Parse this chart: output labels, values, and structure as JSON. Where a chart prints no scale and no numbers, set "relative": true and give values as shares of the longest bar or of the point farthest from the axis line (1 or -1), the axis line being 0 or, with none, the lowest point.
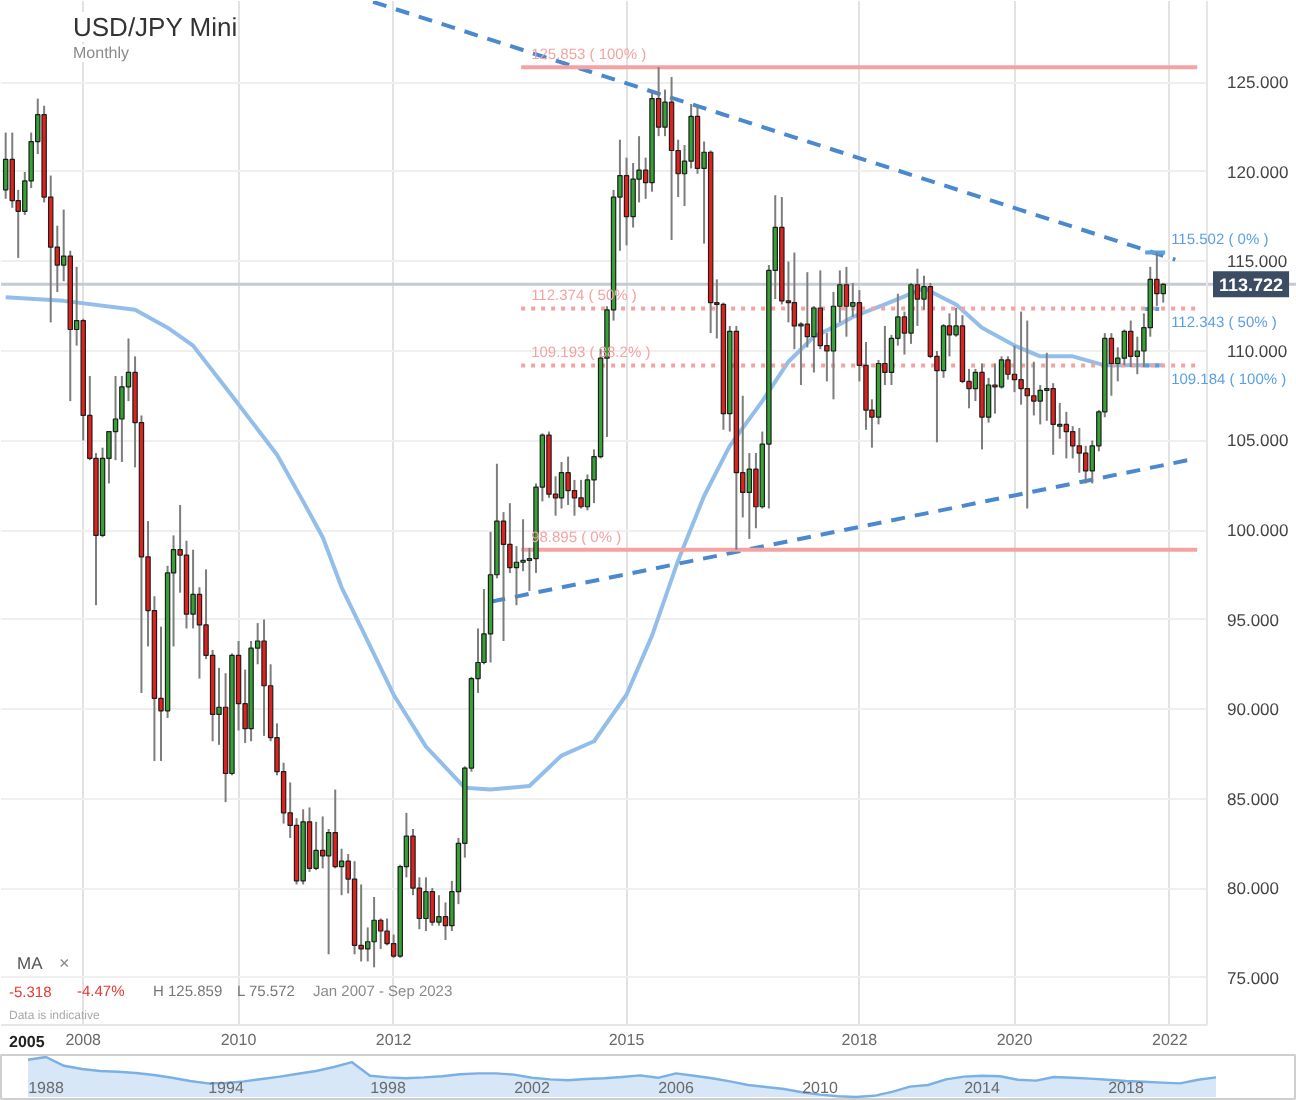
{
  "chart_data": [
    {
      "type": "candlestick",
      "title": "USD/JPY Mini",
      "subtitle": "Monthly",
      "x": [
        "2007-01",
        "2007-02",
        "2007-03",
        "2007-04",
        "2007-05",
        "2007-06",
        "2007-07",
        "2007-08",
        "2007-09",
        "2007-10",
        "2007-11",
        "2007-12",
        "2008-01",
        "2008-02",
        "2008-03",
        "2008-04",
        "2008-05",
        "2008-06",
        "2008-07",
        "2008-08",
        "2008-09",
        "2008-10",
        "2008-11",
        "2008-12",
        "2009-01",
        "2009-02",
        "2009-03",
        "2009-04",
        "2009-05",
        "2009-06",
        "2009-07",
        "2009-08",
        "2009-09",
        "2009-10",
        "2009-11",
        "2009-12",
        "2010-01",
        "2010-02",
        "2010-03",
        "2010-04",
        "2010-05",
        "2010-06",
        "2010-07",
        "2010-08",
        "2010-09",
        "2010-10",
        "2010-11",
        "2010-12",
        "2011-01",
        "2011-02",
        "2011-03",
        "2011-04",
        "2011-05",
        "2011-06",
        "2011-07",
        "2011-08",
        "2011-09",
        "2011-10",
        "2011-11",
        "2011-12",
        "2012-01",
        "2012-02",
        "2012-03",
        "2012-04",
        "2012-05",
        "2012-06",
        "2012-07",
        "2012-08",
        "2012-09",
        "2012-10",
        "2012-11",
        "2012-12",
        "2013-01",
        "2013-02",
        "2013-03",
        "2013-04",
        "2013-05",
        "2013-06",
        "2013-07",
        "2013-08",
        "2013-09",
        "2013-10",
        "2013-11",
        "2013-12",
        "2014-01",
        "2014-02",
        "2014-03",
        "2014-04",
        "2014-05",
        "2014-06",
        "2014-07",
        "2014-08",
        "2014-09",
        "2014-10",
        "2014-11",
        "2014-12",
        "2015-01",
        "2015-02",
        "2015-03",
        "2015-04",
        "2015-05",
        "2015-06",
        "2015-07",
        "2015-08",
        "2015-09",
        "2015-10",
        "2015-11",
        "2015-12",
        "2016-01",
        "2016-02",
        "2016-03",
        "2016-04",
        "2016-05",
        "2016-06",
        "2016-07",
        "2016-08",
        "2016-09",
        "2016-10",
        "2016-11",
        "2016-12",
        "2017-01",
        "2017-02",
        "2017-03",
        "2017-04",
        "2017-05",
        "2017-06",
        "2017-07",
        "2017-08",
        "2017-09",
        "2017-10",
        "2017-11",
        "2017-12",
        "2018-01",
        "2018-02",
        "2018-03",
        "2018-04",
        "2018-05",
        "2018-06",
        "2018-07",
        "2018-08",
        "2018-09",
        "2018-10",
        "2018-11",
        "2018-12",
        "2019-01",
        "2019-02",
        "2019-03",
        "2019-04",
        "2019-05",
        "2019-06",
        "2019-07",
        "2019-08",
        "2019-09",
        "2019-10",
        "2019-11",
        "2019-12",
        "2020-01",
        "2020-02",
        "2020-03",
        "2020-04",
        "2020-05",
        "2020-06",
        "2020-07",
        "2020-08",
        "2020-09",
        "2020-10",
        "2020-11",
        "2020-12",
        "2021-01",
        "2021-02",
        "2021-03",
        "2021-04",
        "2021-05",
        "2021-06",
        "2021-07",
        "2021-08",
        "2021-09",
        "2021-10",
        "2021-11",
        "2021-12"
      ],
      "ohlc": [
        [
          119.0,
          122.2,
          118.5,
          120.7
        ],
        [
          120.7,
          122.2,
          118.0,
          118.4
        ],
        [
          118.4,
          119.0,
          115.2,
          117.8
        ],
        [
          117.8,
          120.0,
          117.6,
          119.5
        ],
        [
          119.5,
          122.2,
          119.1,
          121.7
        ],
        [
          121.7,
          124.1,
          121.0,
          123.2
        ],
        [
          123.2,
          123.7,
          118.3,
          118.6
        ],
        [
          118.6,
          119.8,
          111.6,
          115.8
        ],
        [
          115.8,
          117.0,
          113.3,
          114.8
        ],
        [
          114.8,
          117.9,
          113.9,
          115.3
        ],
        [
          115.3,
          115.6,
          107.2,
          111.2
        ],
        [
          111.2,
          114.7,
          110.3,
          111.7
        ],
        [
          111.7,
          111.8,
          105.0,
          106.4
        ],
        [
          106.4,
          108.6,
          103.9,
          104.0
        ],
        [
          104.0,
          104.3,
          95.8,
          99.7
        ],
        [
          99.7,
          104.6,
          99.6,
          104.0
        ],
        [
          104.0,
          105.5,
          102.6,
          105.5
        ],
        [
          105.5,
          108.6,
          103.9,
          106.2
        ],
        [
          106.2,
          108.6,
          103.8,
          108.0
        ],
        [
          108.0,
          110.7,
          107.2,
          108.8
        ],
        [
          108.8,
          109.7,
          103.5,
          106.0
        ],
        [
          106.0,
          106.4,
          90.9,
          98.5
        ],
        [
          98.5,
          100.5,
          93.5,
          95.5
        ],
        [
          95.5,
          96.3,
          87.1,
          90.6
        ],
        [
          90.6,
          94.6,
          87.1,
          89.9
        ],
        [
          89.9,
          98.0,
          89.5,
          97.6
        ],
        [
          97.6,
          99.7,
          93.5,
          98.9
        ],
        [
          98.9,
          101.4,
          96.5,
          98.6
        ],
        [
          98.6,
          99.4,
          94.5,
          95.3
        ],
        [
          95.3,
          98.9,
          94.5,
          96.4
        ],
        [
          96.4,
          96.8,
          91.7,
          94.7
        ],
        [
          94.7,
          97.8,
          92.8,
          93.0
        ],
        [
          93.0,
          93.3,
          88.2,
          89.7
        ],
        [
          89.7,
          92.3,
          88.0,
          90.1
        ],
        [
          90.1,
          92.0,
          84.8,
          86.4
        ],
        [
          86.4,
          93.1,
          86.3,
          93.0
        ],
        [
          93.0,
          93.8,
          88.8,
          90.3
        ],
        [
          90.3,
          92.2,
          88.1,
          88.9
        ],
        [
          88.9,
          93.8,
          88.2,
          93.4
        ],
        [
          93.4,
          94.8,
          92.5,
          93.8
        ],
        [
          93.8,
          95.0,
          88.5,
          91.3
        ],
        [
          91.3,
          92.5,
          88.2,
          88.4
        ],
        [
          88.4,
          89.2,
          86.3,
          86.5
        ],
        [
          86.5,
          87.0,
          83.6,
          84.2
        ],
        [
          84.2,
          85.9,
          82.8,
          83.5
        ],
        [
          83.5,
          83.9,
          80.2,
          80.4
        ],
        [
          80.4,
          84.4,
          80.2,
          83.7
        ],
        [
          83.7,
          84.5,
          80.9,
          81.1
        ],
        [
          81.1,
          83.7,
          81.0,
          82.1
        ],
        [
          82.1,
          84.0,
          81.1,
          81.8
        ],
        [
          81.8,
          83.3,
          76.3,
          83.1
        ],
        [
          83.1,
          85.5,
          81.1,
          81.2
        ],
        [
          81.2,
          82.2,
          79.6,
          81.5
        ],
        [
          81.5,
          81.9,
          79.7,
          80.5
        ],
        [
          80.5,
          81.5,
          76.3,
          76.8
        ],
        [
          76.8,
          80.2,
          75.9,
          76.6
        ],
        [
          76.6,
          77.8,
          75.9,
          77.0
        ],
        [
          77.0,
          79.5,
          75.572,
          78.2
        ],
        [
          78.2,
          78.3,
          76.6,
          77.6
        ],
        [
          77.6,
          78.3,
          76.8,
          76.9
        ],
        [
          76.9,
          77.4,
          76.1,
          76.2
        ],
        [
          76.2,
          81.3,
          76.1,
          81.2
        ],
        [
          81.2,
          84.2,
          80.6,
          82.9
        ],
        [
          82.9,
          83.3,
          79.6,
          80.0
        ],
        [
          80.0,
          80.6,
          77.7,
          78.3
        ],
        [
          78.3,
          80.6,
          77.6,
          79.8
        ],
        [
          79.8,
          80.0,
          77.9,
          78.1
        ],
        [
          78.1,
          79.6,
          77.9,
          78.4
        ],
        [
          78.4,
          79.2,
          77.1,
          77.9
        ],
        [
          77.9,
          80.4,
          77.6,
          79.8
        ],
        [
          79.8,
          82.8,
          79.1,
          82.5
        ],
        [
          82.5,
          86.8,
          81.7,
          86.7
        ],
        [
          86.7,
          91.8,
          86.5,
          91.7
        ],
        [
          91.7,
          94.5,
          90.9,
          92.6
        ],
        [
          92.6,
          96.7,
          92.5,
          94.2
        ],
        [
          94.2,
          99.9,
          92.6,
          97.5
        ],
        [
          97.5,
          103.7,
          97.3,
          100.5
        ],
        [
          100.5,
          101.0,
          93.8,
          99.2
        ],
        [
          99.2,
          101.5,
          97.6,
          97.9
        ],
        [
          97.9,
          99.1,
          95.8,
          98.2
        ],
        [
          98.2,
          100.6,
          97.7,
          98.3
        ],
        [
          98.3,
          99.0,
          96.6,
          98.4
        ],
        [
          98.4,
          102.6,
          97.6,
          102.4
        ],
        [
          102.4,
          105.4,
          101.6,
          105.3
        ],
        [
          105.3,
          105.5,
          101.8,
          102.0
        ],
        [
          102.0,
          103.0,
          100.8,
          101.8
        ],
        [
          101.8,
          103.8,
          101.2,
          103.2
        ],
        [
          103.2,
          104.1,
          101.4,
          102.2
        ],
        [
          102.2,
          102.8,
          100.8,
          101.8
        ],
        [
          101.8,
          102.8,
          101.2,
          101.3
        ],
        [
          101.3,
          103.1,
          101.1,
          102.8
        ],
        [
          102.8,
          104.5,
          101.5,
          104.1
        ],
        [
          104.1,
          110.1,
          104.0,
          109.6
        ],
        [
          109.6,
          112.5,
          105.2,
          112.3
        ],
        [
          112.3,
          119.0,
          111.7,
          118.6
        ],
        [
          118.6,
          121.8,
          115.6,
          119.8
        ],
        [
          119.8,
          120.8,
          115.9,
          117.5
        ],
        [
          117.5,
          120.5,
          116.9,
          119.6
        ],
        [
          119.6,
          122.0,
          118.3,
          120.1
        ],
        [
          120.1,
          120.8,
          118.5,
          119.4
        ],
        [
          119.4,
          124.5,
          118.9,
          124.1
        ],
        [
          124.1,
          125.859,
          122.0,
          122.5
        ],
        [
          122.5,
          124.6,
          122.0,
          123.9
        ],
        [
          123.9,
          125.3,
          116.2,
          121.2
        ],
        [
          121.2,
          121.8,
          118.6,
          119.9
        ],
        [
          119.9,
          121.5,
          118.1,
          120.6
        ],
        [
          120.6,
          123.8,
          120.2,
          123.1
        ],
        [
          123.1,
          123.7,
          119.9,
          120.2
        ],
        [
          120.2,
          121.7,
          116.0,
          121.1
        ],
        [
          121.1,
          121.2,
          111.0,
          112.7
        ],
        [
          112.7,
          114.0,
          110.7,
          112.6
        ],
        [
          112.6,
          112.7,
          105.6,
          106.5
        ],
        [
          106.5,
          111.4,
          105.5,
          111.1
        ],
        [
          111.1,
          111.4,
          98.9,
          103.2
        ],
        [
          103.2,
          107.5,
          100.7,
          102.1
        ],
        [
          102.1,
          104.3,
          99.5,
          103.4
        ],
        [
          103.4,
          104.3,
          100.1,
          101.3
        ],
        [
          101.3,
          105.5,
          101.2,
          104.8
        ],
        [
          104.8,
          114.8,
          101.2,
          114.5
        ],
        [
          114.5,
          118.7,
          112.9,
          116.9
        ],
        [
          116.9,
          118.6,
          112.6,
          112.8
        ],
        [
          112.8,
          115.0,
          111.6,
          112.7
        ],
        [
          112.7,
          115.5,
          110.1,
          111.4
        ],
        [
          111.4,
          111.6,
          108.1,
          111.5
        ],
        [
          111.5,
          114.4,
          110.2,
          110.8
        ],
        [
          110.8,
          112.5,
          108.8,
          112.4
        ],
        [
          112.4,
          114.5,
          110.1,
          110.3
        ],
        [
          110.3,
          111.0,
          108.3,
          110.0
        ],
        [
          110.0,
          113.3,
          107.3,
          112.5
        ],
        [
          112.5,
          114.5,
          111.6,
          113.7
        ],
        [
          113.7,
          114.7,
          110.8,
          112.5
        ],
        [
          112.5,
          113.8,
          111.9,
          112.7
        ],
        [
          112.7,
          113.4,
          108.3,
          109.2
        ],
        [
          109.2,
          110.5,
          105.6,
          106.7
        ],
        [
          106.7,
          107.3,
          104.6,
          106.3
        ],
        [
          106.3,
          109.5,
          105.9,
          109.3
        ],
        [
          109.3,
          111.4,
          108.1,
          108.8
        ],
        [
          108.8,
          110.9,
          108.1,
          110.7
        ],
        [
          110.7,
          113.2,
          110.3,
          111.9
        ],
        [
          111.9,
          112.2,
          109.8,
          111.0
        ],
        [
          111.0,
          113.8,
          110.4,
          113.7
        ],
        [
          113.7,
          114.6,
          111.4,
          112.9
        ],
        [
          112.9,
          114.2,
          112.3,
          113.6
        ],
        [
          113.6,
          113.8,
          109.6,
          109.7
        ],
        [
          109.7,
          110.0,
          104.9,
          108.9
        ],
        [
          108.9,
          111.5,
          108.5,
          111.4
        ],
        [
          111.4,
          112.1,
          109.7,
          110.9
        ],
        [
          110.9,
          112.4,
          110.8,
          111.4
        ],
        [
          111.4,
          112.0,
          108.2,
          108.3
        ],
        [
          108.3,
          109.0,
          106.8,
          107.9
        ],
        [
          107.9,
          109.0,
          107.2,
          108.8
        ],
        [
          108.8,
          109.3,
          104.5,
          106.3
        ],
        [
          106.3,
          108.5,
          106.0,
          108.1
        ],
        [
          108.1,
          109.3,
          106.5,
          108.0
        ],
        [
          108.0,
          109.7,
          107.9,
          109.5
        ],
        [
          109.5,
          109.7,
          108.4,
          108.7
        ],
        [
          108.7,
          110.3,
          107.7,
          108.4
        ],
        [
          108.4,
          112.2,
          107.0,
          107.9
        ],
        [
          107.9,
          111.7,
          101.2,
          107.5
        ],
        [
          107.5,
          109.4,
          106.4,
          107.2
        ],
        [
          107.2,
          108.1,
          105.9,
          107.8
        ],
        [
          107.8,
          109.9,
          106.1,
          107.9
        ],
        [
          107.9,
          108.2,
          104.2,
          105.9
        ],
        [
          105.8,
          107.1,
          105.1,
          105.9
        ],
        [
          105.9,
          106.6,
          104.0,
          105.5
        ],
        [
          105.5,
          105.8,
          104.0,
          104.7
        ],
        [
          104.7,
          105.7,
          103.2,
          104.3
        ],
        [
          104.3,
          104.7,
          102.6,
          103.3
        ],
        [
          103.3,
          105.0,
          102.6,
          104.7
        ],
        [
          104.7,
          106.7,
          104.4,
          106.6
        ],
        [
          106.6,
          111.0,
          106.3,
          110.7
        ],
        [
          110.7,
          111.0,
          107.5,
          109.3
        ],
        [
          109.3,
          110.2,
          108.3,
          109.6
        ],
        [
          109.6,
          111.2,
          109.2,
          111.1
        ],
        [
          111.1,
          111.7,
          109.1,
          109.7
        ],
        [
          109.7,
          110.8,
          108.7,
          110.0
        ],
        [
          110.0,
          112.1,
          109.1,
          111.3
        ],
        [
          111.3,
          114.7,
          110.8,
          114.0
        ],
        [
          114.0,
          115.5,
          112.5,
          113.2
        ],
        [
          113.2,
          113.8,
          112.7,
          113.722
        ]
      ],
      "series": [
        {
          "type": "line",
          "color": "#93bee9",
          "x": [
            "2007-01",
            "2007-10",
            "2008-09",
            "2009-02",
            "2009-06",
            "2009-12",
            "2010-07",
            "2010-11",
            "2011-02",
            "2011-05",
            "2012-01",
            "2012-06",
            "2012-12",
            "2013-04",
            "2013-10",
            "2014-03",
            "2014-08",
            "2015-01",
            "2015-05",
            "2015-09",
            "2016-01",
            "2016-05",
            "2016-10",
            "2017-02",
            "2017-06",
            "2017-10",
            "2017-12",
            "2018-05",
            "2018-11",
            "2019-04",
            "2019-08",
            "2020-01",
            "2020-05",
            "2020-10",
            "2021-03",
            "2021-08",
            "2021-12"
          ],
          "values": [
            113.0,
            112.8,
            112.3,
            111.3,
            110.3,
            107.5,
            104.2,
            101.6,
            99.6,
            96.8,
            90.8,
            87.9,
            85.6,
            85.5,
            85.7,
            87.4,
            88.2,
            90.8,
            94.1,
            98.3,
            101.9,
            104.7,
            107.2,
            109.4,
            110.8,
            111.5,
            111.9,
            112.6,
            113.5,
            112.6,
            111.3,
            110.3,
            109.7,
            109.7,
            109.2,
            109.2,
            109.2
          ]
        },
        {
          "type": "line",
          "color": "#4a88cf",
          "line_style": "dashed",
          "x": [
            "2011-09-26",
            "2022-01-27"
          ],
          "values": [
            129.5,
            115.1
          ]
        },
        {
          "type": "line",
          "color": "#4a88cf",
          "line_style": "dashed",
          "x": [
            "2013-04-05",
            "2022-03-27"
          ],
          "values": [
            96.0,
            103.9
          ]
        },
        {
          "type": "line",
          "name": "125.853 ( 100% )",
          "color": "#f4a3a3",
          "line_style": "solid",
          "x": [
            "2013-08-23",
            "2022-05-10"
          ],
          "values": [
            125.853,
            125.853
          ]
        },
        {
          "type": "line",
          "name": "112.374 ( 50% )",
          "color": "#f4a3a3",
          "line_style": "dotted",
          "x": [
            "2013-08-23",
            "2022-05-10"
          ],
          "values": [
            112.374,
            112.374
          ]
        },
        {
          "type": "line",
          "name": "109.193 ( 38.2% )",
          "color": "#f4a3a3",
          "line_style": "dotted",
          "x": [
            "2013-08-23",
            "2022-05-10"
          ],
          "values": [
            109.193,
            109.193
          ]
        },
        {
          "type": "line",
          "name": "98.895 ( 0% )",
          "color": "#f4a3a3",
          "line_style": "solid",
          "x": [
            "2013-08-23",
            "2022-05-10"
          ],
          "values": [
            98.895,
            98.895
          ]
        },
        {
          "type": "line",
          "name": "115.502 ( 0% )",
          "color": "#5b9fe3",
          "line_style": "solid",
          "x": [
            "2021-09-07",
            "2021-12-10"
          ],
          "values": [
            115.502,
            115.502
          ]
        },
        {
          "type": "line",
          "name": "112.343 ( 50% )",
          "color": "#5b9fe3",
          "line_style": "dotted",
          "x": [
            "2021-09-07",
            "2021-12-10"
          ],
          "values": [
            112.343,
            112.343
          ]
        },
        {
          "type": "line",
          "name": "109.184 ( 100% )",
          "color": "#5b9fe3",
          "line_style": "dotted",
          "x": [
            "2021-09-07",
            "2021-12-10"
          ],
          "values": [
            109.184,
            109.184
          ]
        }
      ],
      "xlim": [
        "2006-12-10",
        "2022-06-25"
      ],
      "ylim": [
        72.35,
        129.55
      ],
      "xticks": [
        "2008",
        "2010",
        "2012",
        "2015",
        "2018",
        "2020",
        "2022"
      ],
      "yticks": [
        {
          "value": 75,
          "label": "75.000"
        },
        {
          "value": 80,
          "label": "80.000"
        },
        {
          "value": 85,
          "label": "85.000"
        },
        {
          "value": 90,
          "label": "90.000"
        },
        {
          "value": 95,
          "label": "95.000"
        },
        {
          "value": 100,
          "label": "100.000"
        },
        {
          "value": 105,
          "label": "105.000"
        },
        {
          "value": 110,
          "label": "110.000"
        },
        {
          "value": 115,
          "label": "115.000"
        },
        {
          "value": 120,
          "label": "120.000"
        },
        {
          "value": 125,
          "label": "125.000"
        }
      ],
      "grid": true,
      "ref_lines": [
        {
          "axis": "y",
          "value": 113.722,
          "label": "113.722",
          "color": "#c6cbd1"
        }
      ],
      "annotations": [
        "MA",
        "×",
        "-5.318",
        "-4.47%",
        "H 125.859",
        "L 75.572",
        "Jan 2007 - Sep 2023",
        "Data is indicative",
        "2005"
      ]
    },
    {
      "type": "area",
      "relative": true,
      "color": "#7ab0e4",
      "categories": [
        null,
        null,
        "1988",
        null,
        null,
        null,
        null,
        null,
        null,
        null,
        null,
        null,
        "1994",
        null,
        null,
        null,
        null,
        null,
        null,
        null,
        null,
        "1998",
        null,
        null,
        null,
        null,
        null,
        null,
        null,
        "2002",
        null,
        null,
        null,
        null,
        null,
        null,
        null,
        "2006",
        null,
        null,
        null,
        null,
        null,
        null,
        null,
        "2010",
        null,
        null,
        null,
        null,
        null,
        null,
        null,
        null,
        "2014",
        null,
        null,
        null,
        null,
        null,
        null,
        null,
        "2018",
        null,
        null,
        null,
        null,
        null,
        null,
        null,
        null,
        null
      ],
      "values": [
        null,
        0.93,
        1,
        0.78,
        0.7,
        0.65,
        0.63,
        0.6,
        0.55,
        0.48,
        0.4,
        0.34,
        0.35,
        0.39,
        0.45,
        0.51,
        0.58,
        0.65,
        0.75,
        0.87,
        0.53,
        0.49,
        0.47,
        0.49,
        0.52,
        0.57,
        0.59,
        0.59,
        0.56,
        0.48,
        0.44,
        0.42,
        0.45,
        0.47,
        0.5,
        0.54,
        0.48,
        0.59,
        0.53,
        0.47,
        0.39,
        0.3,
        0.25,
        0.2,
        0.12,
        0.06,
        0.02,
        0,
        0.03,
        0.13,
        0.26,
        0.3,
        0.44,
        0.51,
        0.53,
        0.52,
        0.43,
        0.41,
        0.5,
        0.48,
        0.46,
        0.43,
        0.4,
        0.38,
        0.36,
        0.34,
        0.43,
        0.49,
        null,
        null,
        null,
        null
      ],
      "tick_labels": "x"
    }
  ]
}
